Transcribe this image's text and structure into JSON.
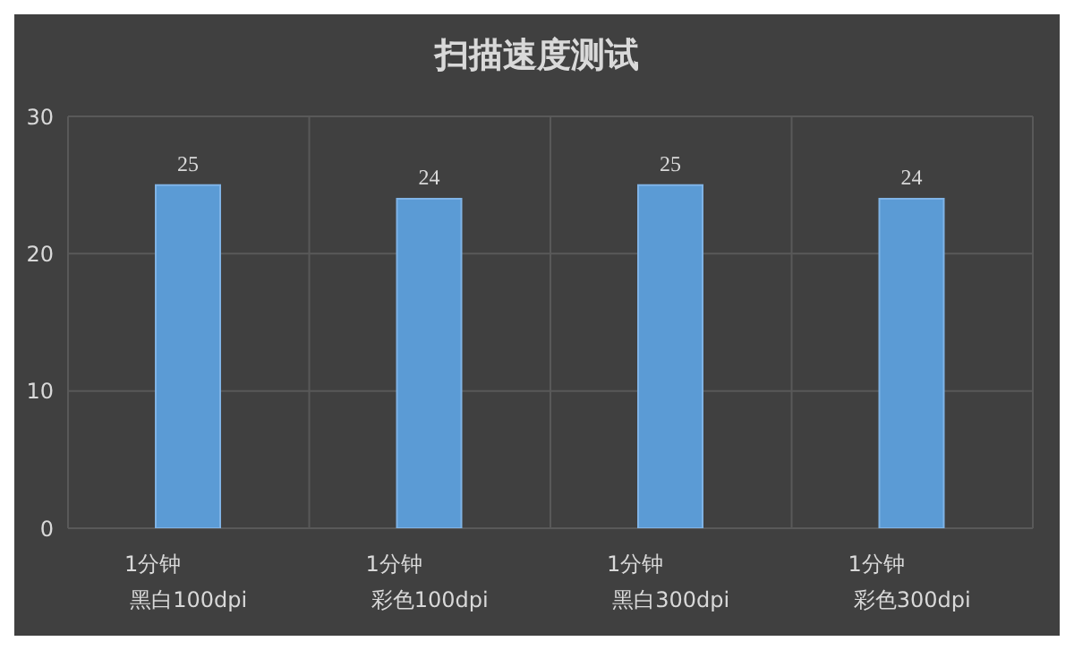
{
  "chart_data": {
    "type": "bar",
    "title": "扫描速度测试",
    "categories": [
      "1分钟黑白100dpi",
      "1分钟彩色100dpi",
      "1分钟黑白300dpi",
      "1分钟彩色300dpi"
    ],
    "values": [
      25,
      24,
      25,
      24
    ],
    "color": "#5b9bd5",
    "ylim": [
      0,
      30
    ],
    "yticks": [
      0,
      10,
      20,
      30
    ],
    "grid": true,
    "data_labels": true
  }
}
